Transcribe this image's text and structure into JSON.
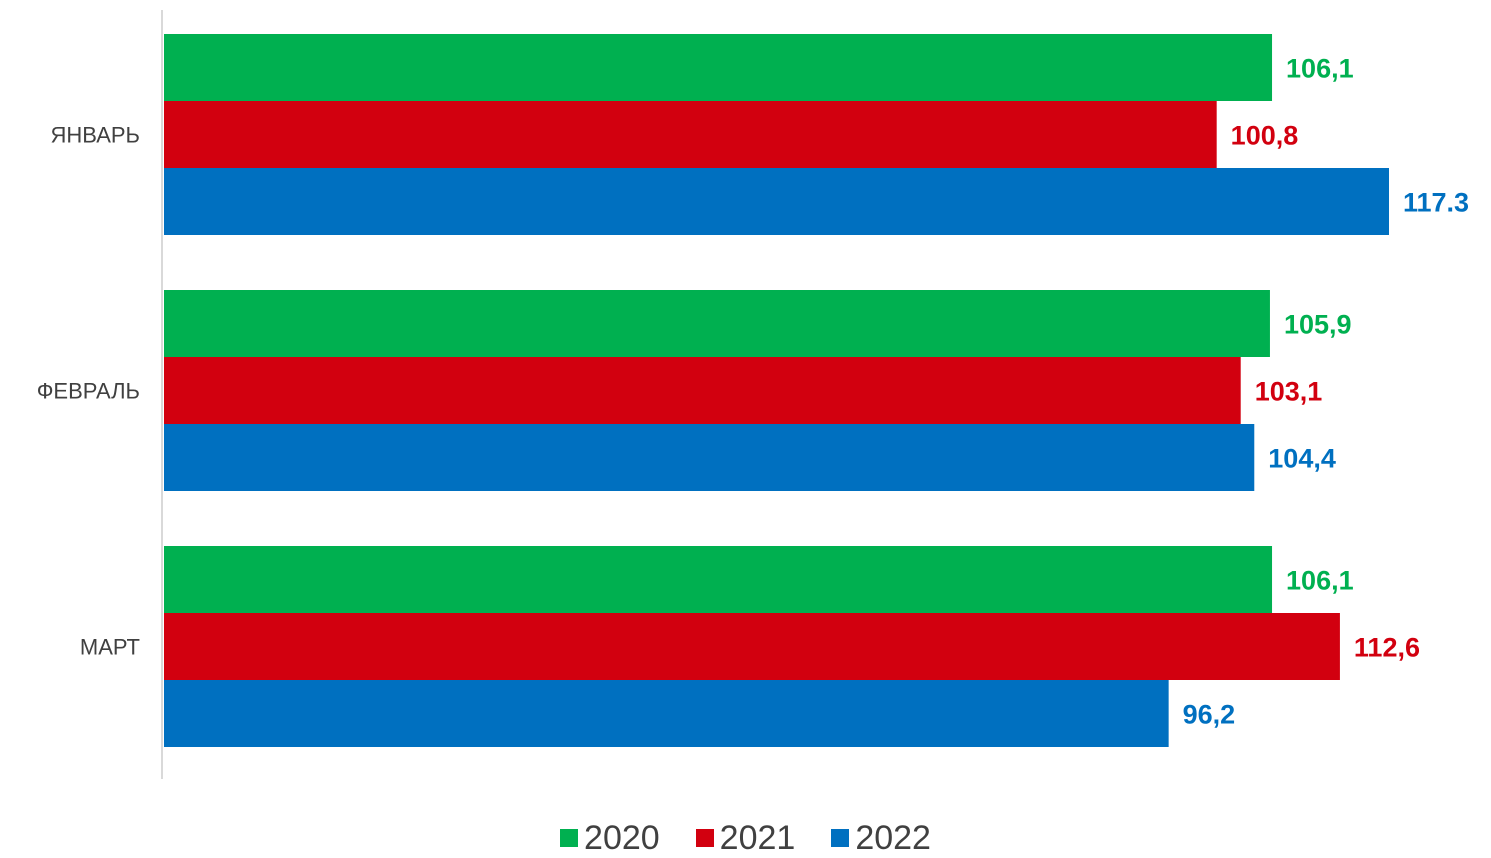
{
  "chart_data": {
    "type": "bar",
    "orientation": "horizontal",
    "categories": [
      "ЯНВАРЬ",
      "ФЕВРАЛЬ",
      "МАРТ"
    ],
    "series": [
      {
        "name": "2020",
        "color": "#00B050",
        "values": [
          106.1,
          105.9,
          106.1
        ],
        "labels": [
          "106,1",
          "105,9",
          "106,1"
        ]
      },
      {
        "name": "2021",
        "color": "#D2000F",
        "values": [
          100.8,
          103.1,
          112.6
        ],
        "labels": [
          "100,8",
          "103,1",
          "112,6"
        ]
      },
      {
        "name": "2022",
        "color": "#0070C0",
        "values": [
          117.3,
          104.4,
          96.2
        ],
        "labels": [
          "117.3",
          "104,4",
          "96,2"
        ]
      }
    ],
    "xlim": [
      0,
      117.3
    ],
    "grid": false,
    "legend": "bottom-center"
  }
}
